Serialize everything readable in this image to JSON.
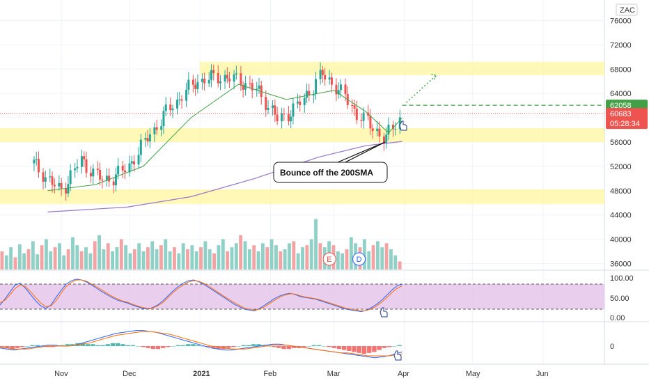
{
  "chart_data": [
    {
      "type": "candlestick",
      "ticker": "ZAC",
      "ylim": [
        34000,
        78000
      ],
      "y_ticks": [
        "76000",
        "72000",
        "68000",
        "64000",
        "60000",
        "56000",
        "52000",
        "48000",
        "44000",
        "40000",
        "36000"
      ],
      "x_ticks": [
        "Nov",
        "Dec",
        "2021",
        "Feb",
        "Mar",
        "Apr",
        "May",
        "Jun"
      ],
      "last_price": "60683",
      "countdown": "05:28:34",
      "target_price": "62058",
      "annotation": "Bounce off the 200SMA",
      "event_markers": [
        "E",
        "D"
      ],
      "support_resistance_zones": [
        [
          67000,
          69200
        ],
        [
          56000,
          58300
        ],
        [
          45800,
          48200
        ]
      ],
      "sma200": [
        {
          "x": "2020-10-26",
          "y": 44500
        },
        {
          "x": "2020-11-30",
          "y": 45300
        },
        {
          "x": "2020-12-28",
          "y": 47000
        },
        {
          "x": "2021-01-25",
          "y": 50000
        },
        {
          "x": "2021-02-22",
          "y": 53500
        },
        {
          "x": "2021-03-15",
          "y": 55400
        },
        {
          "x": "2021-03-31",
          "y": 56100
        }
      ],
      "sma20": [
        {
          "x": "2020-10-26",
          "y": 48000
        },
        {
          "x": "2020-11-16",
          "y": 49000
        },
        {
          "x": "2020-12-07",
          "y": 52000
        },
        {
          "x": "2020-12-28",
          "y": 60000
        },
        {
          "x": "2021-01-18",
          "y": 65500
        },
        {
          "x": "2021-02-08",
          "y": 63000
        },
        {
          "x": "2021-03-01",
          "y": 64500
        },
        {
          "x": "2021-03-15",
          "y": 61000
        },
        {
          "x": "2021-03-25",
          "y": 57500
        },
        {
          "x": "2021-03-31",
          "y": 60000
        }
      ],
      "price_close": [
        {
          "x": "2020-10-20",
          "y": 52500
        },
        {
          "x": "2020-11-01",
          "y": 47800
        },
        {
          "x": "2020-11-10",
          "y": 53000
        },
        {
          "x": "2020-11-20",
          "y": 49500
        },
        {
          "x": "2020-11-30",
          "y": 51500
        },
        {
          "x": "2020-12-10",
          "y": 57000
        },
        {
          "x": "2020-12-20",
          "y": 62000
        },
        {
          "x": "2020-12-31",
          "y": 66000
        },
        {
          "x": "2021-01-10",
          "y": 66800
        },
        {
          "x": "2021-01-20",
          "y": 66000
        },
        {
          "x": "2021-01-28",
          "y": 64000
        },
        {
          "x": "2021-02-05",
          "y": 59500
        },
        {
          "x": "2021-02-15",
          "y": 62500
        },
        {
          "x": "2021-02-24",
          "y": 67200
        },
        {
          "x": "2021-03-04",
          "y": 64500
        },
        {
          "x": "2021-03-12",
          "y": 60500
        },
        {
          "x": "2021-03-20",
          "y": 58000
        },
        {
          "x": "2021-03-24",
          "y": 56300
        },
        {
          "x": "2021-03-31",
          "y": 60683
        }
      ],
      "volume": [
        18,
        14,
        22,
        12,
        25,
        16,
        20,
        28,
        15,
        24,
        30,
        18,
        22,
        26,
        14,
        20,
        32,
        24,
        18,
        22,
        16,
        28,
        34,
        20,
        26,
        18,
        22,
        30,
        24,
        16,
        20,
        26,
        18,
        22,
        28,
        20,
        24,
        30,
        18,
        22,
        16,
        26,
        20,
        24,
        18,
        22,
        28,
        20,
        16,
        24,
        30,
        18,
        22,
        26,
        34,
        28,
        20,
        24,
        18,
        26,
        22,
        30,
        24,
        18,
        20,
        26,
        28,
        16,
        22,
        24,
        30,
        50,
        26,
        22,
        28,
        24,
        18,
        16,
        20,
        32,
        26,
        22,
        30,
        18,
        24,
        28,
        22,
        26,
        20,
        14,
        8
      ],
      "stoch_rsi_levels": [
        80,
        20
      ],
      "stoch_rsi_ticks": [
        "100.00",
        "50.00",
        "0.00"
      ],
      "stoch_k": [
        30,
        45,
        62,
        78,
        82,
        70,
        55,
        40,
        28,
        22,
        30,
        48,
        65,
        80,
        88,
        92,
        90,
        85,
        78,
        70,
        62,
        55,
        48,
        42,
        38,
        35,
        30,
        26,
        22,
        20,
        24,
        30,
        40,
        52,
        64,
        74,
        82,
        88,
        90,
        86,
        80,
        72,
        64,
        56,
        48,
        40,
        32,
        26,
        20,
        18,
        16,
        22,
        30,
        38,
        46,
        52,
        56,
        58,
        55,
        50,
        48,
        46,
        44,
        40,
        36,
        32,
        28,
        24,
        20,
        18,
        16,
        14,
        18,
        24,
        32,
        42,
        54,
        66,
        76,
        80
      ],
      "stoch_d": [
        35,
        42,
        55,
        70,
        78,
        74,
        62,
        48,
        35,
        26,
        28,
        40,
        58,
        74,
        84,
        90,
        90,
        87,
        80,
        73,
        66,
        58,
        51,
        45,
        40,
        37,
        32,
        28,
        24,
        22,
        23,
        28,
        36,
        48,
        60,
        70,
        78,
        85,
        88,
        87,
        82,
        75,
        67,
        59,
        51,
        43,
        36,
        29,
        23,
        20,
        18,
        20,
        26,
        34,
        42,
        49,
        54,
        57,
        56,
        52,
        49,
        47,
        45,
        42,
        38,
        34,
        30,
        26,
        22,
        20,
        18,
        16,
        17,
        21,
        28,
        37,
        48,
        60,
        70,
        76
      ],
      "macd_ticks": [
        "0"
      ],
      "macd_hist": [
        -1,
        -2,
        -3,
        -2,
        -1,
        0,
        1,
        1,
        0,
        -1,
        -1,
        0,
        1,
        2,
        2,
        3,
        3,
        2,
        2,
        1,
        1,
        2,
        3,
        3,
        2,
        1,
        1,
        0,
        -1,
        -2,
        -3,
        -3,
        -2,
        -1,
        0,
        1,
        1,
        2,
        2,
        1,
        0,
        -1,
        -2,
        -3,
        -3,
        -2,
        -1,
        0,
        1,
        1,
        2,
        2,
        1,
        0,
        -1,
        -2,
        -3,
        -3,
        -2,
        -2,
        -1,
        0,
        1,
        1,
        0,
        -1,
        -2,
        -3,
        -4,
        -5,
        -6,
        -7,
        -8,
        -7,
        -6,
        -4,
        -2,
        -1,
        0,
        1
      ],
      "macd_line": [
        -2,
        -3,
        -4,
        -3,
        -2,
        -1,
        0,
        1,
        1,
        0,
        0,
        1,
        3,
        5,
        7,
        9,
        11,
        13,
        14,
        15,
        16,
        16,
        15,
        14,
        12,
        10,
        8,
        6,
        4,
        2,
        0,
        -2,
        -3,
        -4,
        -4,
        -3,
        -2,
        -1,
        0,
        1,
        2,
        2,
        1,
        0,
        -1,
        -2,
        -3,
        -4,
        -5,
        -6,
        -7,
        -8,
        -9,
        -10,
        -11,
        -12,
        -11,
        -10,
        -8,
        -6
      ],
      "macd_signal": [
        -1,
        -2,
        -3,
        -3,
        -3,
        -2,
        -1,
        0,
        0,
        0,
        0,
        1,
        2,
        3,
        5,
        7,
        9,
        11,
        12,
        13,
        14,
        15,
        15,
        14,
        13,
        12,
        10,
        8,
        6,
        4,
        2,
        0,
        -1,
        -2,
        -3,
        -3,
        -3,
        -2,
        -1,
        0,
        1,
        1,
        1,
        0,
        -1,
        -2,
        -3,
        -4,
        -5,
        -6,
        -7,
        -7,
        -8,
        -9,
        -10,
        -10,
        -10,
        -10,
        -9,
        -8
      ]
    }
  ]
}
